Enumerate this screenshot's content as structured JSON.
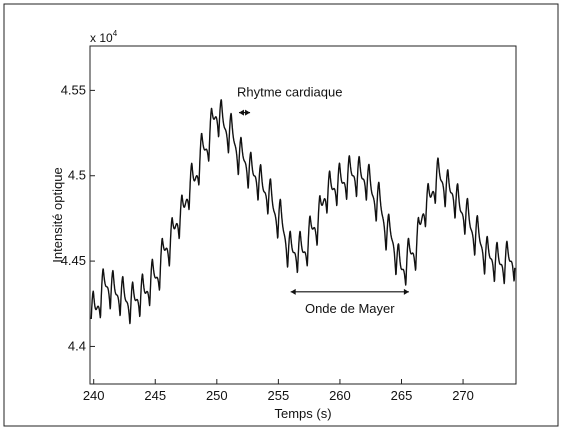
{
  "chart_data": {
    "type": "line",
    "xlabel": "Temps (s)",
    "ylabel": "Intensité optique",
    "exponent_label": "x 10",
    "exponent_power": "4",
    "xlim": [
      239.7,
      274.3
    ],
    "ylim": [
      4.378,
      4.576
    ],
    "x_ticks": [
      "240",
      "245",
      "250",
      "255",
      "260",
      "265",
      "270"
    ],
    "x_tick_values": [
      240,
      245,
      250,
      255,
      260,
      265,
      270
    ],
    "y_ticks": [
      "4.4",
      "4.45",
      "4.5",
      "4.55"
    ],
    "y_tick_values": [
      4.4,
      4.45,
      4.5,
      4.55
    ],
    "grid": false,
    "series": [
      {
        "x": [
          240,
          241,
          242,
          243,
          244,
          245,
          246,
          247,
          248,
          249,
          250,
          251,
          252,
          253,
          254,
          255,
          256,
          257,
          258,
          259,
          260,
          261,
          262,
          263,
          264,
          265,
          266,
          267,
          268,
          269,
          270,
          271,
          272,
          273,
          274
        ],
        "y": [
          4.42,
          4.435,
          4.43,
          4.425,
          4.43,
          4.44,
          4.458,
          4.475,
          4.495,
          4.515,
          4.535,
          4.525,
          4.51,
          4.5,
          4.49,
          4.475,
          4.455,
          4.455,
          4.47,
          4.49,
          4.495,
          4.5,
          4.498,
          4.485,
          4.465,
          4.445,
          4.455,
          4.482,
          4.498,
          4.49,
          4.478,
          4.465,
          4.452,
          4.448,
          4.45
        ],
        "cardiac_period_s": 0.8,
        "cardiac_amplitude": 0.025
      }
    ],
    "annotations": [
      {
        "text": "Rhytme cardiaque",
        "x_from": 251.8,
        "x_to": 252.7,
        "y": 4.537
      },
      {
        "text": "Onde de Mayer",
        "x_from": 256,
        "x_to": 265.6,
        "y": 4.432
      }
    ]
  }
}
